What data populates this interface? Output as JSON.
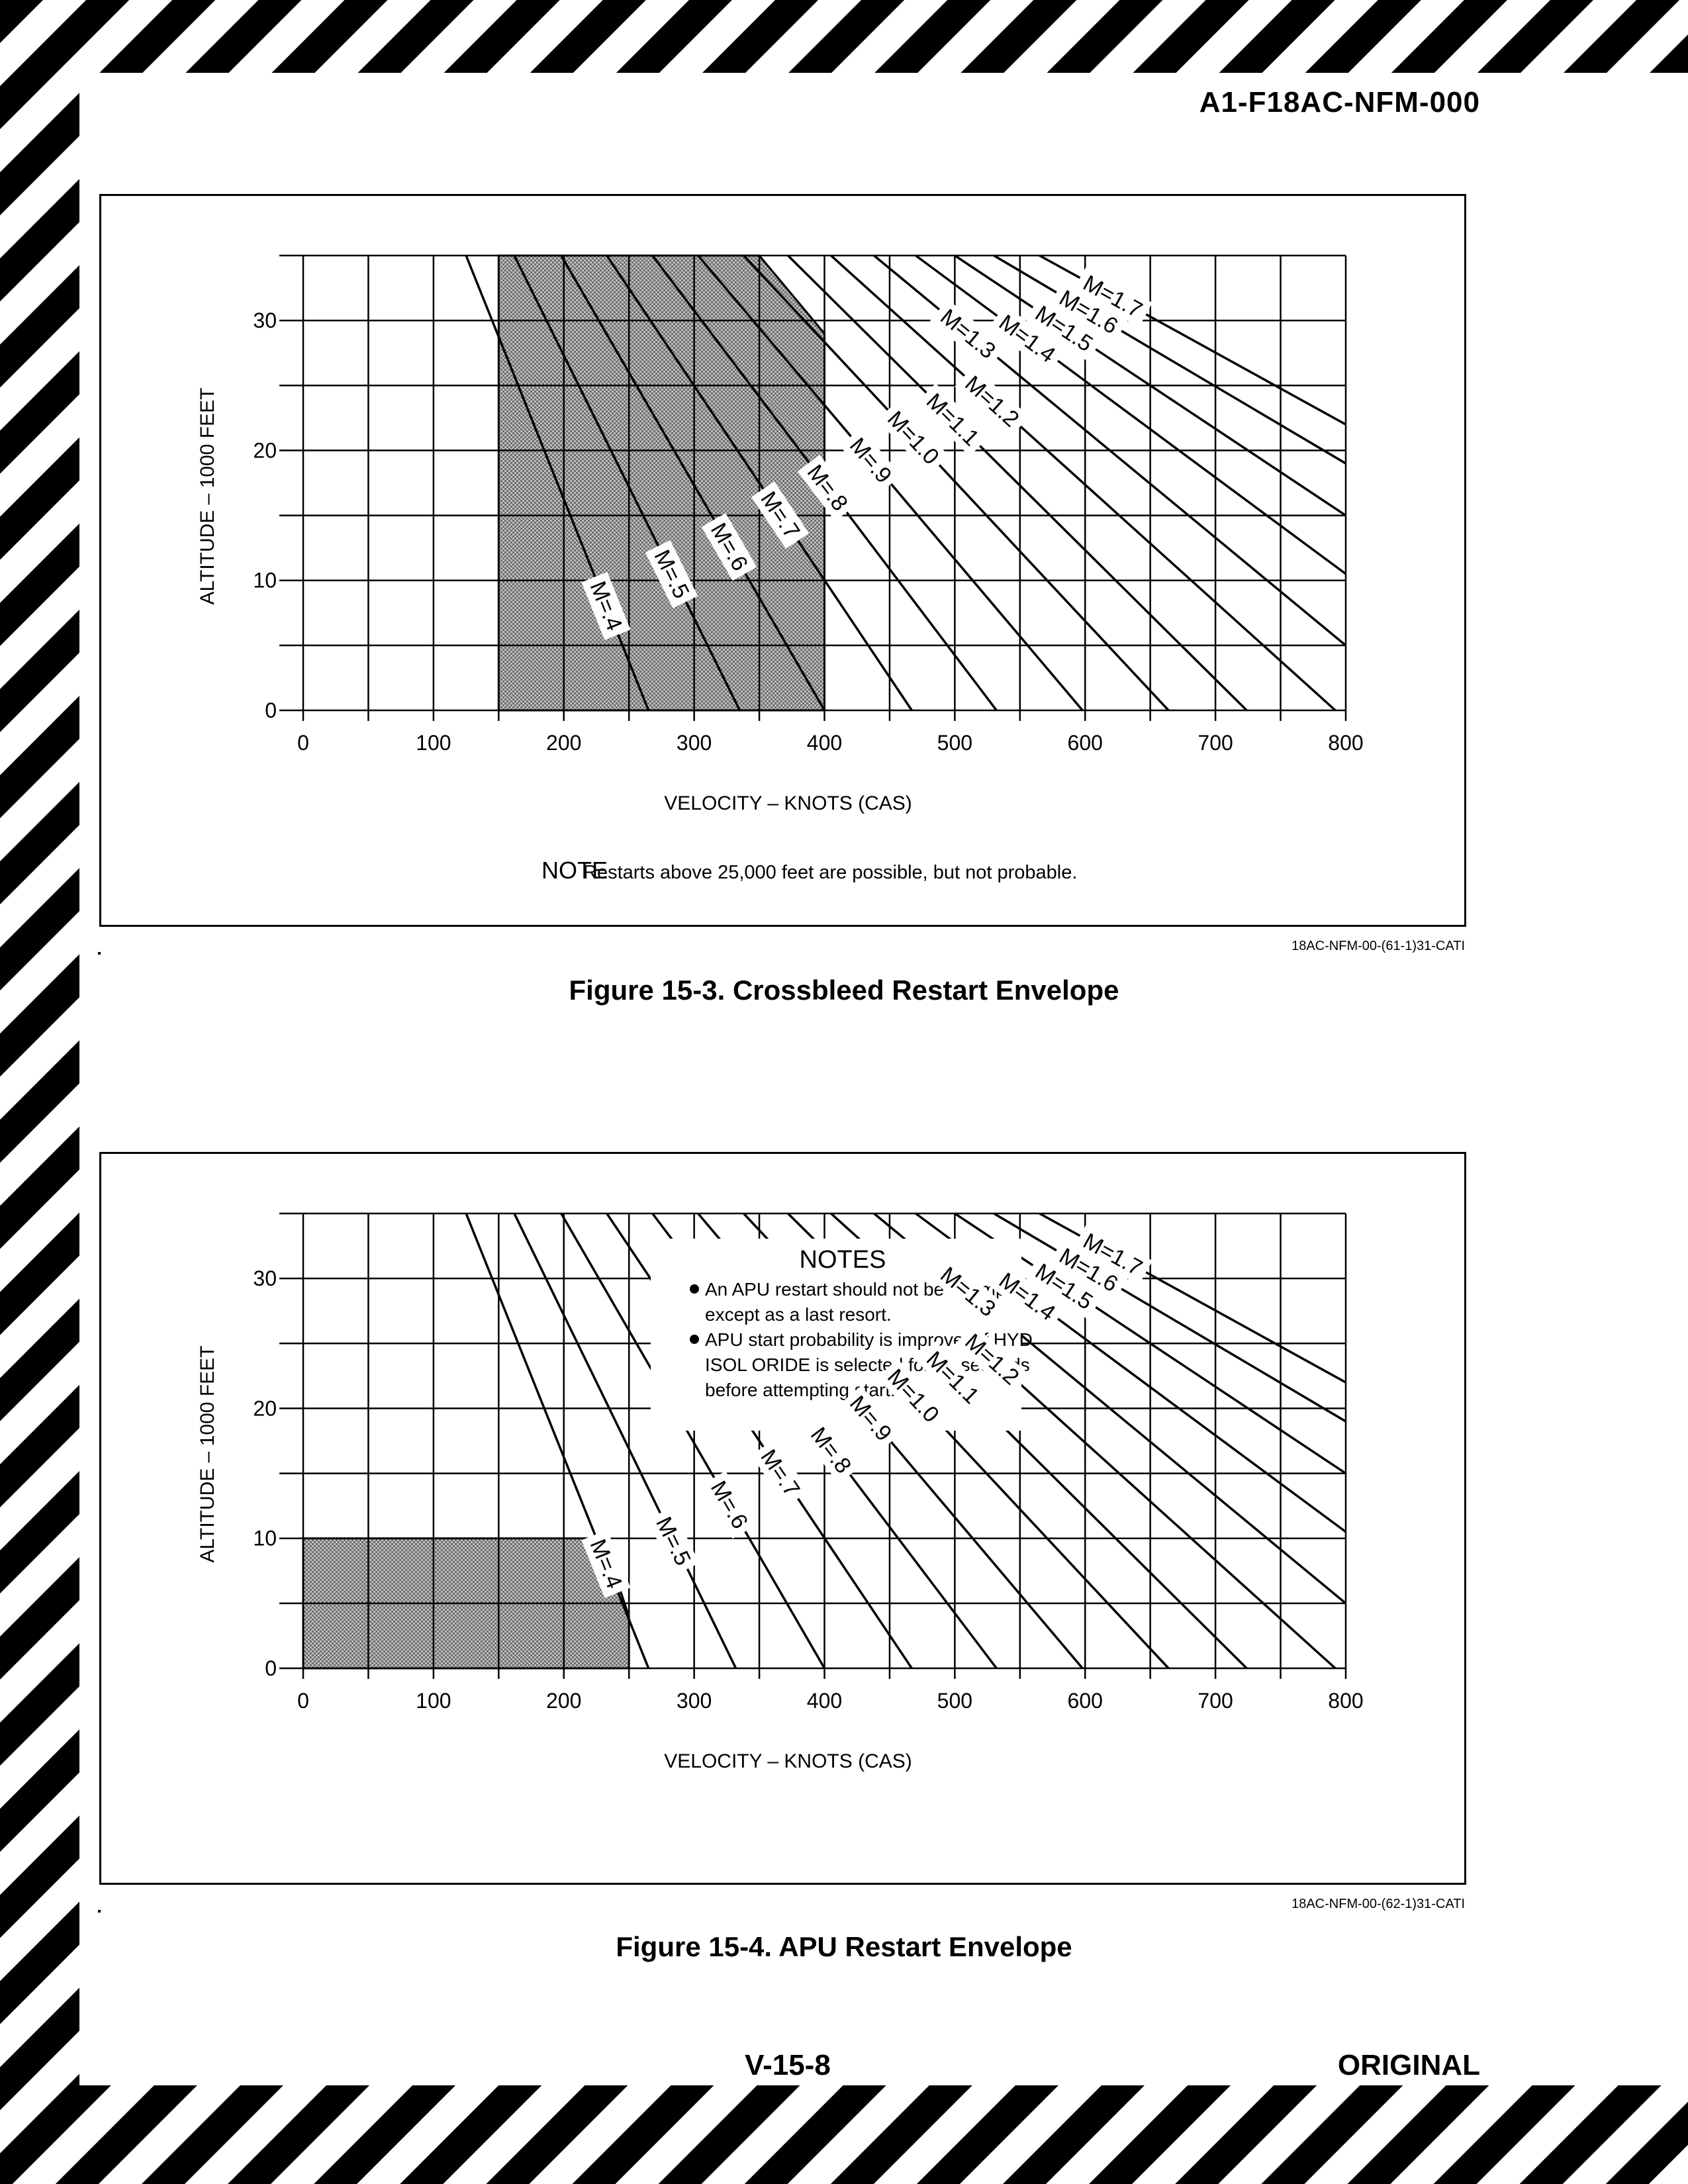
{
  "header": {
    "doc_id": "A1-F18AC-NFM-000"
  },
  "footer": {
    "page_number": "V-15-8",
    "status": "ORIGINAL"
  },
  "colors": {
    "stripe": "#000000",
    "shade": "#6e6e6e"
  },
  "figures": [
    {
      "caption": "Figure 15-3. Crossbleed Restart Envelope",
      "code": "18AC-NFM-00-(61-1)31-CATI"
    },
    {
      "caption": "Figure 15-4. APU Restart Envelope",
      "code": "18AC-NFM-00-(62-1)31-CATI"
    }
  ],
  "chart_data": [
    {
      "type": "line",
      "xlabel": "VELOCITY – KNOTS (CAS)",
      "ylabel": "ALTITUDE – 1000 FEET",
      "xlim": [
        0,
        800
      ],
      "ylim": [
        0,
        35
      ],
      "xticks": [
        0,
        100,
        200,
        300,
        400,
        500,
        600,
        700,
        800
      ],
      "yticks": [
        0,
        10,
        20,
        30
      ],
      "grid": true,
      "note_heading": "NOTE",
      "note_text": "Restarts above 25,000 feet are possible, but not probable.",
      "shaded_region": {
        "label": "restart envelope",
        "polygon": [
          [
            150,
            0
          ],
          [
            400,
            0
          ],
          [
            400,
            29
          ],
          [
            350,
            35
          ],
          [
            150,
            35
          ]
        ]
      },
      "series": [
        {
          "name": "M=.4",
          "points": [
            [
              265,
              0
            ],
            [
              125,
              35
            ]
          ]
        },
        {
          "name": "M=.5",
          "points": [
            [
              335,
              0
            ],
            [
              162,
              35
            ]
          ]
        },
        {
          "name": "M=.6",
          "points": [
            [
              400,
              0
            ],
            [
              198,
              35
            ]
          ]
        },
        {
          "name": "M=.7",
          "points": [
            [
              467,
              0
            ],
            [
              233,
              35
            ]
          ]
        },
        {
          "name": "M=.8",
          "points": [
            [
              532,
              0
            ],
            [
              268,
              35
            ]
          ]
        },
        {
          "name": "M=.9",
          "points": [
            [
              598,
              0
            ],
            [
              303,
              35
            ]
          ]
        },
        {
          "name": "M=1.0",
          "points": [
            [
              664,
              0
            ],
            [
              338,
              35
            ]
          ]
        },
        {
          "name": "M=1.1",
          "points": [
            [
              724,
              0
            ],
            [
              372,
              35
            ]
          ]
        },
        {
          "name": "M=1.2",
          "points": [
            [
              792,
              0
            ],
            [
              405,
              35
            ]
          ]
        },
        {
          "name": "M=1.3",
          "points": [
            [
              800,
              5
            ],
            [
              438,
              35
            ]
          ]
        },
        {
          "name": "M=1.4",
          "points": [
            [
              800,
              10.5
            ],
            [
              470,
              35
            ]
          ]
        },
        {
          "name": "M=1.5",
          "points": [
            [
              800,
              15
            ],
            [
              500,
              35
            ]
          ]
        },
        {
          "name": "M=1.6",
          "points": [
            [
              800,
              19
            ],
            [
              530,
              35
            ]
          ]
        },
        {
          "name": "M=1.7",
          "points": [
            [
              800,
              22
            ],
            [
              565,
              35
            ]
          ]
        }
      ]
    },
    {
      "type": "line",
      "xlabel": "VELOCITY – KNOTS (CAS)",
      "ylabel": "ALTITUDE – 1000 FEET",
      "xlim": [
        0,
        800
      ],
      "ylim": [
        0,
        35
      ],
      "xticks": [
        0,
        100,
        200,
        300,
        400,
        500,
        600,
        700,
        800
      ],
      "yticks": [
        0,
        10,
        20,
        30
      ],
      "grid": true,
      "notes_heading": "NOTES",
      "notes": [
        "An APU restart should not be attempted except as a last resort.",
        "APU start probability is improved if HYD ISOL ORIDE is selected for 10 seconds before attempting start."
      ],
      "shaded_region": {
        "label": "restart envelope",
        "polygon": [
          [
            0,
            0
          ],
          [
            250,
            0
          ],
          [
            250,
            4
          ],
          [
            230,
            10
          ],
          [
            0,
            10
          ]
        ]
      },
      "series": [
        {
          "name": "M=.4",
          "points": [
            [
              265,
              0
            ],
            [
              125,
              35
            ]
          ]
        },
        {
          "name": "M=.5",
          "points": [
            [
              332,
              0
            ],
            [
              162,
              35
            ]
          ]
        },
        {
          "name": "M=.6",
          "points": [
            [
              400,
              0
            ],
            [
              198,
              35
            ]
          ]
        },
        {
          "name": "M=.7",
          "points": [
            [
              467,
              0
            ],
            [
              233,
              35
            ]
          ]
        },
        {
          "name": "M=.8",
          "points": [
            [
              532,
              0
            ],
            [
              268,
              35
            ]
          ]
        },
        {
          "name": "M=.9",
          "points": [
            [
              598,
              0
            ],
            [
              303,
              35
            ]
          ]
        },
        {
          "name": "M=1.0",
          "points": [
            [
              664,
              0
            ],
            [
              338,
              35
            ]
          ]
        },
        {
          "name": "M=1.1",
          "points": [
            [
              724,
              0
            ],
            [
              372,
              35
            ]
          ]
        },
        {
          "name": "M=1.2",
          "points": [
            [
              792,
              0
            ],
            [
              405,
              35
            ]
          ]
        },
        {
          "name": "M=1.3",
          "points": [
            [
              800,
              5
            ],
            [
              438,
              35
            ]
          ]
        },
        {
          "name": "M=1.4",
          "points": [
            [
              800,
              10.5
            ],
            [
              470,
              35
            ]
          ]
        },
        {
          "name": "M=1.5",
          "points": [
            [
              800,
              15
            ],
            [
              500,
              35
            ]
          ]
        },
        {
          "name": "M=1.6",
          "points": [
            [
              800,
              19
            ],
            [
              530,
              35
            ]
          ]
        },
        {
          "name": "M=1.7",
          "points": [
            [
              800,
              22
            ],
            [
              565,
              35
            ]
          ]
        }
      ]
    }
  ]
}
